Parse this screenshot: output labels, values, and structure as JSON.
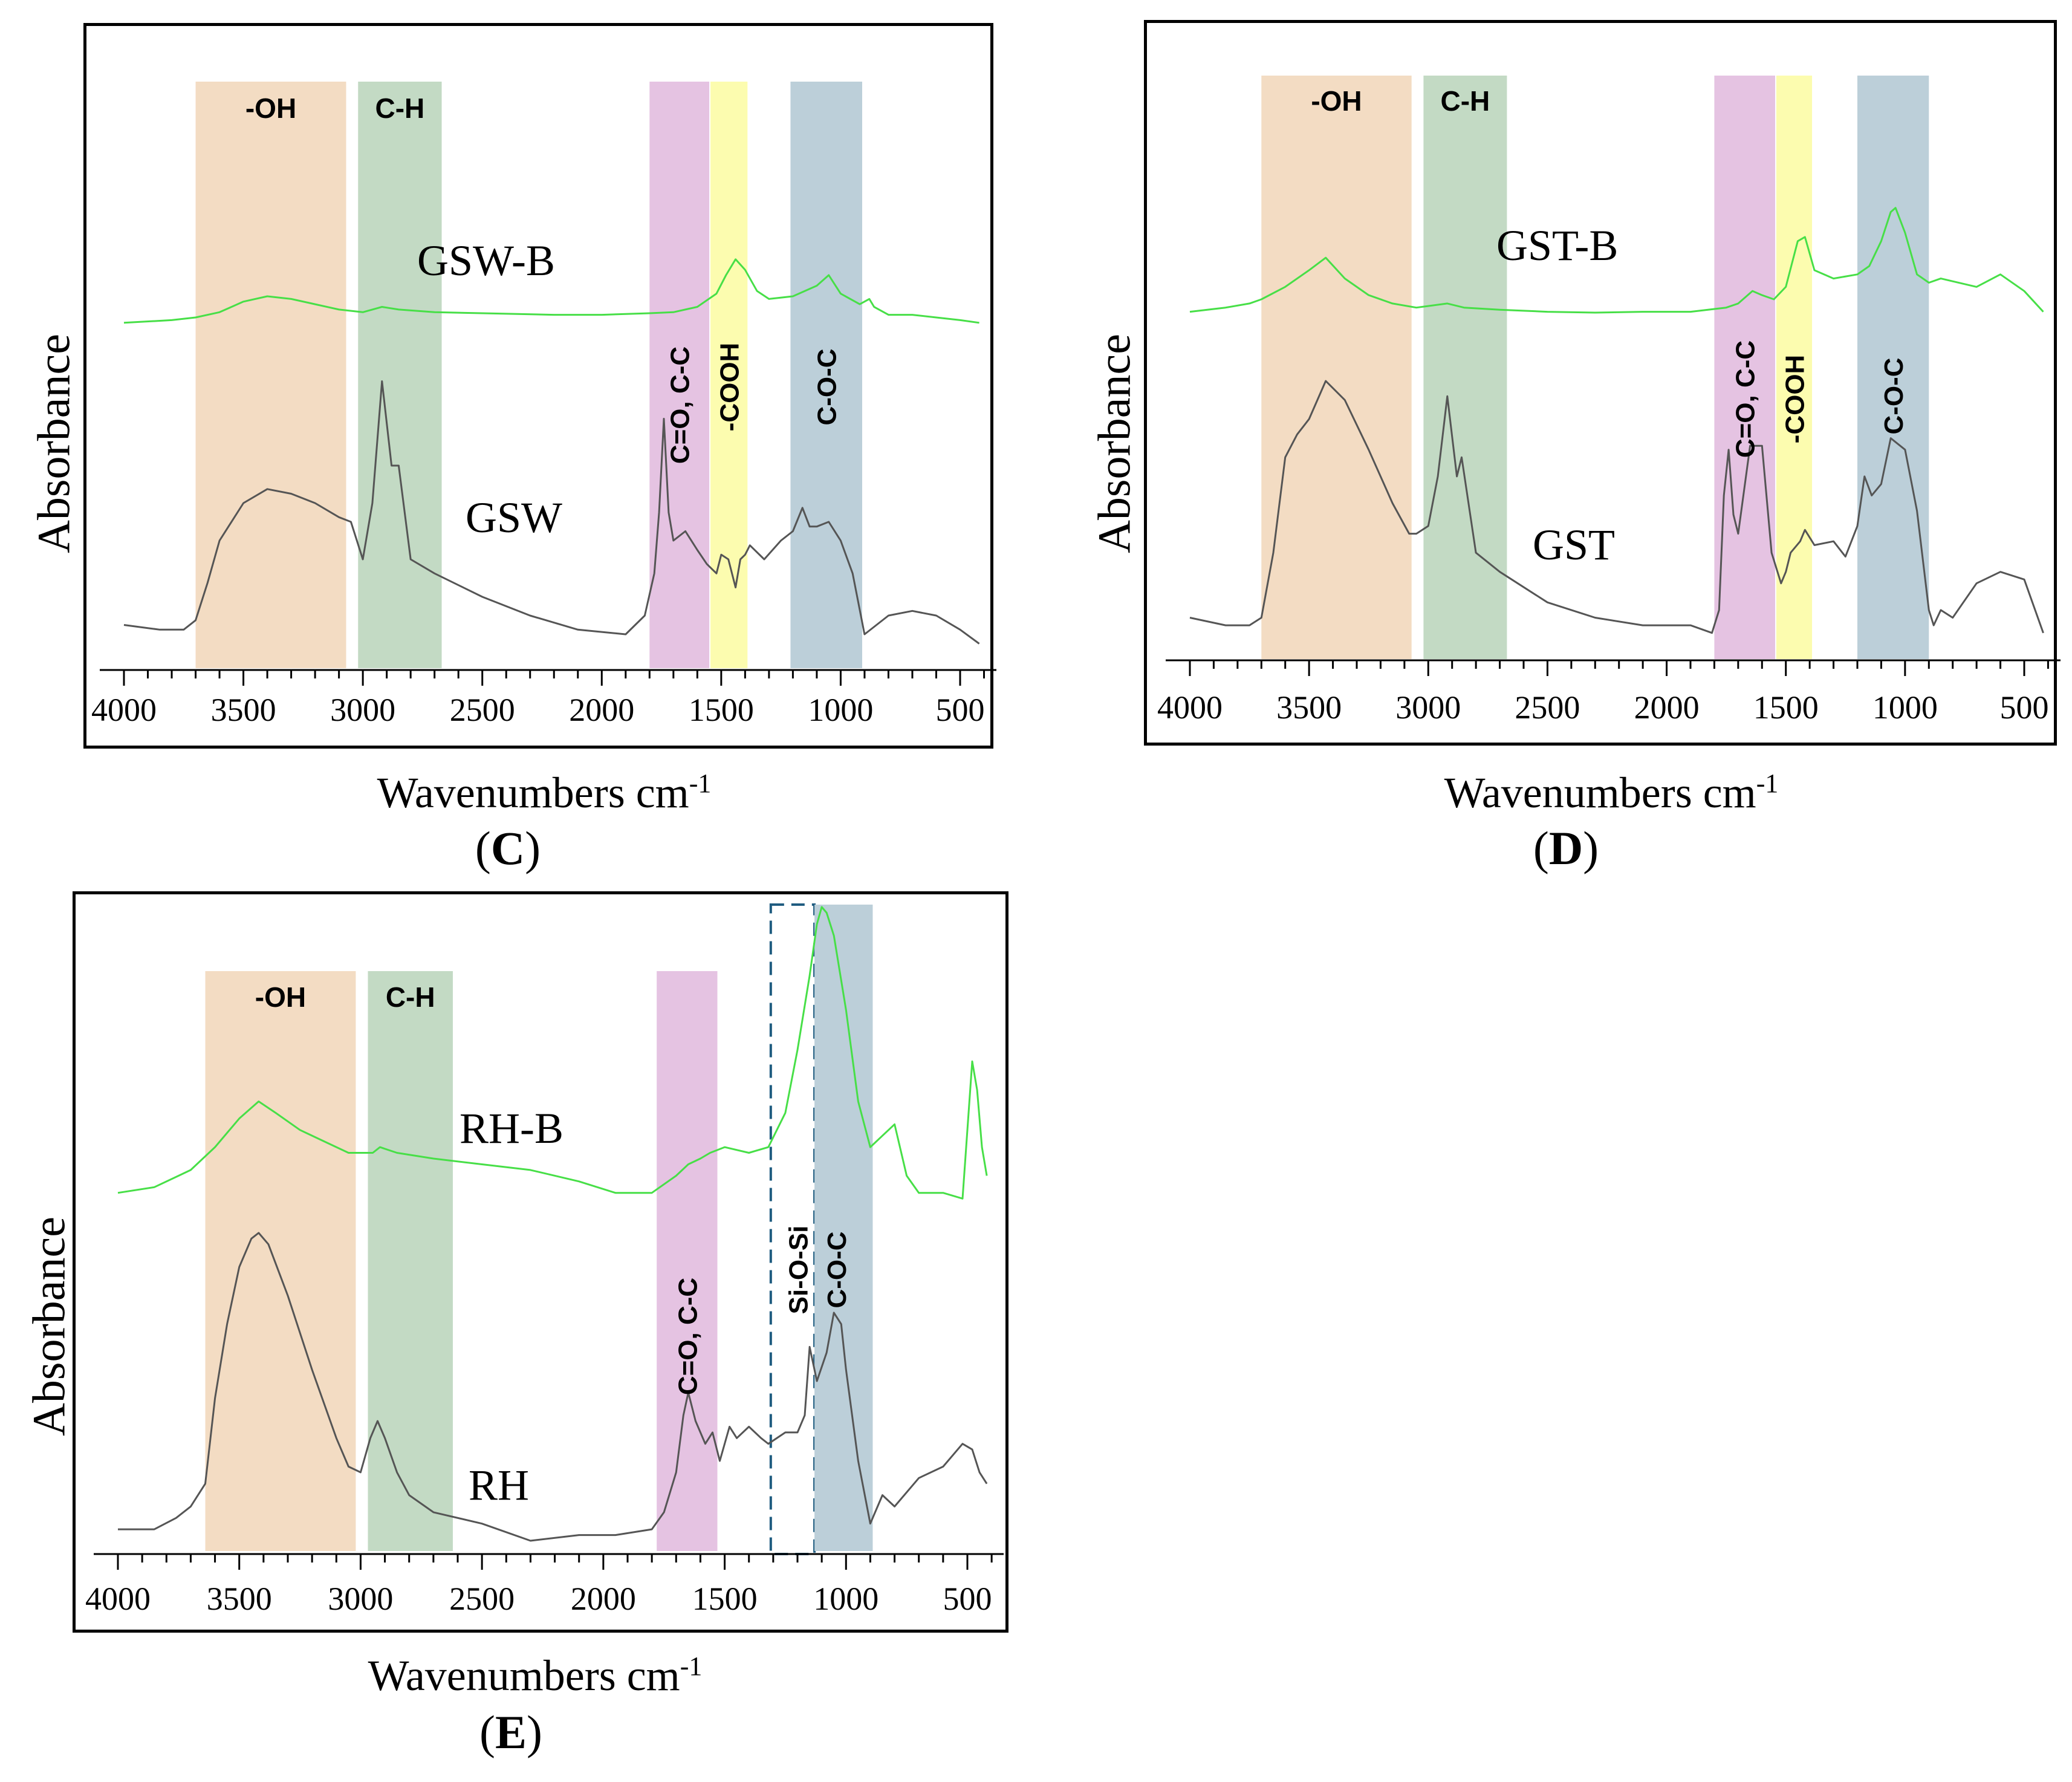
{
  "colors": {
    "oh": "#f3dcc3",
    "ch": "#c3dac4",
    "co": "#e5c3e2",
    "cooh": "#fcfcaf",
    "coc": "#bccfd9",
    "biochar_line": "#47df47",
    "raw_line": "#555555",
    "sios_box": "#1f5c80"
  },
  "chart_data": [
    {
      "type": "line",
      "panel": "C",
      "xlabel": "Wavenumbers cm",
      "xlabel_sup": "-1",
      "ylabel": "Absorbance",
      "panel_label": "C",
      "xlim": [
        4000,
        400
      ],
      "xticks": [
        4000,
        3500,
        3000,
        2500,
        2000,
        1500,
        1000,
        500
      ],
      "xtick_labels": [
        "4000",
        "3500",
        "3000",
        "2500",
        "2000",
        "1500",
        "1000",
        "500"
      ],
      "bands": [
        {
          "name": "-OH",
          "from": 3700,
          "to": 3070,
          "color": "oh",
          "label_style": "top"
        },
        {
          "name": "C-H",
          "from": 3020,
          "to": 2670,
          "color": "ch",
          "label_style": "top"
        },
        {
          "name": "C=O, C-C",
          "from": 1800,
          "to": 1550,
          "color": "co",
          "label_style": "vertical"
        },
        {
          "name": "-COOH",
          "from": 1545,
          "to": 1390,
          "color": "cooh",
          "label_style": "vertical"
        },
        {
          "name": "C-O-C",
          "from": 1210,
          "to": 910,
          "color": "coc",
          "label_style": "vertical"
        }
      ],
      "series": [
        {
          "name": "GSW-B",
          "color": "biochar_line",
          "x": [
            4000,
            3800,
            3700,
            3600,
            3500,
            3400,
            3300,
            3200,
            3100,
            3000,
            2920,
            2850,
            2700,
            2500,
            2200,
            2000,
            1800,
            1700,
            1650,
            1600,
            1520,
            1480,
            1440,
            1400,
            1350,
            1300,
            1200,
            1100,
            1050,
            1000,
            920,
            880,
            860,
            800,
            700,
            600,
            500,
            420
          ],
          "values": [
            0.53,
            0.535,
            0.54,
            0.55,
            0.57,
            0.58,
            0.575,
            0.565,
            0.555,
            0.55,
            0.56,
            0.555,
            0.55,
            0.548,
            0.545,
            0.545,
            0.548,
            0.55,
            0.555,
            0.56,
            0.585,
            0.62,
            0.65,
            0.63,
            0.59,
            0.575,
            0.58,
            0.6,
            0.62,
            0.585,
            0.565,
            0.575,
            0.56,
            0.545,
            0.545,
            0.54,
            0.535,
            0.53
          ]
        },
        {
          "name": "GSW",
          "color": "raw_line",
          "x": [
            4000,
            3850,
            3750,
            3700,
            3650,
            3600,
            3500,
            3400,
            3300,
            3200,
            3100,
            3050,
            3000,
            2960,
            2920,
            2880,
            2850,
            2800,
            2700,
            2500,
            2300,
            2100,
            1900,
            1820,
            1780,
            1760,
            1740,
            1720,
            1700,
            1650,
            1600,
            1560,
            1520,
            1500,
            1470,
            1440,
            1420,
            1400,
            1380,
            1320,
            1250,
            1200,
            1160,
            1130,
            1100,
            1050,
            1000,
            950,
            900,
            800,
            700,
            600,
            500,
            420
          ],
          "values": [
            0.06,
            0.05,
            0.05,
            0.07,
            0.15,
            0.24,
            0.32,
            0.35,
            0.34,
            0.32,
            0.29,
            0.28,
            0.2,
            0.32,
            0.58,
            0.4,
            0.4,
            0.2,
            0.17,
            0.12,
            0.08,
            0.05,
            0.04,
            0.08,
            0.17,
            0.3,
            0.5,
            0.3,
            0.24,
            0.26,
            0.22,
            0.19,
            0.17,
            0.21,
            0.2,
            0.14,
            0.2,
            0.21,
            0.23,
            0.2,
            0.24,
            0.26,
            0.31,
            0.27,
            0.27,
            0.28,
            0.24,
            0.17,
            0.04,
            0.08,
            0.09,
            0.08,
            0.05,
            0.02
          ]
        }
      ],
      "series_labels": [
        {
          "name": "GSW-B",
          "text": "GSW-B"
        },
        {
          "name": "GSW",
          "text": "GSW"
        }
      ]
    },
    {
      "type": "line",
      "panel": "D",
      "xlabel": "Wavenumbers cm",
      "xlabel_sup": "-1",
      "ylabel": "Absorbance",
      "panel_label": "D",
      "xlim": [
        4000,
        400
      ],
      "xticks": [
        4000,
        3500,
        3000,
        2500,
        2000,
        1500,
        1000,
        500
      ],
      "xtick_labels": [
        "4000",
        "3500",
        "3000",
        "2500",
        "2000",
        "1500",
        "1000",
        "500"
      ],
      "bands": [
        {
          "name": "-OH",
          "from": 3700,
          "to": 3070,
          "color": "oh",
          "label_style": "top"
        },
        {
          "name": "C-H",
          "from": 3020,
          "to": 2670,
          "color": "ch",
          "label_style": "top"
        },
        {
          "name": "C=O, C-C",
          "from": 1800,
          "to": 1545,
          "color": "co",
          "label_style": "vertical"
        },
        {
          "name": "-COOH",
          "from": 1540,
          "to": 1390,
          "color": "cooh",
          "label_style": "vertical"
        },
        {
          "name": "C-O-C",
          "from": 1200,
          "to": 900,
          "color": "coc",
          "label_style": "vertical"
        }
      ],
      "series": [
        {
          "name": "GST-B",
          "color": "biochar_line",
          "x": [
            4000,
            3850,
            3750,
            3700,
            3600,
            3500,
            3430,
            3350,
            3250,
            3150,
            3050,
            2920,
            2850,
            2700,
            2500,
            2300,
            2100,
            1900,
            1750,
            1700,
            1640,
            1600,
            1550,
            1500,
            1450,
            1420,
            1380,
            1300,
            1200,
            1150,
            1100,
            1060,
            1040,
            1000,
            950,
            900,
            850,
            700,
            600,
            500,
            420
          ],
          "values": [
            0.55,
            0.56,
            0.57,
            0.58,
            0.61,
            0.65,
            0.68,
            0.63,
            0.59,
            0.57,
            0.56,
            0.57,
            0.56,
            0.555,
            0.55,
            0.548,
            0.55,
            0.55,
            0.56,
            0.57,
            0.6,
            0.59,
            0.58,
            0.61,
            0.72,
            0.73,
            0.65,
            0.63,
            0.64,
            0.66,
            0.72,
            0.79,
            0.8,
            0.74,
            0.64,
            0.62,
            0.63,
            0.61,
            0.64,
            0.6,
            0.55
          ]
        },
        {
          "name": "GST",
          "color": "raw_line",
          "x": [
            4000,
            3850,
            3750,
            3700,
            3650,
            3600,
            3550,
            3500,
            3430,
            3350,
            3250,
            3150,
            3080,
            3050,
            3000,
            2960,
            2920,
            2880,
            2860,
            2800,
            2700,
            2500,
            2300,
            2100,
            1900,
            1810,
            1780,
            1760,
            1740,
            1720,
            1700,
            1650,
            1600,
            1560,
            1520,
            1500,
            1480,
            1440,
            1420,
            1380,
            1300,
            1250,
            1200,
            1170,
            1140,
            1100,
            1060,
            1000,
            950,
            900,
            880,
            850,
            800,
            700,
            600,
            500,
            420
          ],
          "values": [
            0.08,
            0.06,
            0.06,
            0.08,
            0.25,
            0.5,
            0.56,
            0.6,
            0.7,
            0.65,
            0.52,
            0.38,
            0.3,
            0.3,
            0.32,
            0.45,
            0.66,
            0.45,
            0.5,
            0.25,
            0.2,
            0.12,
            0.08,
            0.06,
            0.06,
            0.04,
            0.1,
            0.4,
            0.52,
            0.35,
            0.3,
            0.53,
            0.53,
            0.25,
            0.17,
            0.2,
            0.25,
            0.28,
            0.31,
            0.27,
            0.28,
            0.24,
            0.32,
            0.45,
            0.4,
            0.43,
            0.55,
            0.52,
            0.36,
            0.1,
            0.06,
            0.1,
            0.08,
            0.17,
            0.2,
            0.18,
            0.04
          ]
        }
      ],
      "series_labels": [
        {
          "name": "GST-B",
          "text": "GST-B"
        },
        {
          "name": "GST",
          "text": "GST"
        }
      ]
    },
    {
      "type": "line",
      "panel": "E",
      "xlabel": "Wavenumbers cm",
      "xlabel_sup": "-1",
      "ylabel": "Absorbance",
      "panel_label": "E",
      "xlim": [
        4000,
        400
      ],
      "xticks": [
        4000,
        3500,
        3000,
        2500,
        2000,
        1500,
        1000,
        500
      ],
      "xtick_labels": [
        "4000",
        "3500",
        "3000",
        "2500",
        "2000",
        "1500",
        "1000",
        "500"
      ],
      "bands": [
        {
          "name": "-OH",
          "from": 3640,
          "to": 3020,
          "color": "oh",
          "label_style": "top"
        },
        {
          "name": "C-H",
          "from": 2970,
          "to": 2620,
          "color": "ch",
          "label_style": "top"
        },
        {
          "name": "C=O, C-C",
          "from": 1780,
          "to": 1530,
          "color": "co",
          "label_style": "vertical"
        },
        {
          "name": "Si-O-Si",
          "from": 1310,
          "to": 1130,
          "color": "none",
          "label_style": "dashed-box"
        },
        {
          "name": "C-O-C",
          "from": 1130,
          "to": 890,
          "color": "coc",
          "label_style": "vertical"
        }
      ],
      "series": [
        {
          "name": "RH-B",
          "color": "biochar_line",
          "x": [
            4000,
            3850,
            3750,
            3700,
            3600,
            3500,
            3420,
            3350,
            3250,
            3150,
            3050,
            2950,
            2920,
            2850,
            2700,
            2500,
            2300,
            2100,
            1950,
            1800,
            1700,
            1650,
            1600,
            1560,
            1500,
            1400,
            1320,
            1250,
            1200,
            1150,
            1120,
            1100,
            1080,
            1050,
            1000,
            950,
            900,
            850,
            800,
            750,
            700,
            600,
            520,
            480,
            460,
            440,
            420
          ],
          "values": [
            0.5,
            0.51,
            0.53,
            0.54,
            0.58,
            0.63,
            0.66,
            0.64,
            0.61,
            0.59,
            0.57,
            0.57,
            0.58,
            0.57,
            0.56,
            0.55,
            0.54,
            0.52,
            0.5,
            0.5,
            0.53,
            0.55,
            0.56,
            0.57,
            0.58,
            0.57,
            0.58,
            0.64,
            0.75,
            0.88,
            0.97,
            1.0,
            0.99,
            0.95,
            0.82,
            0.66,
            0.58,
            0.6,
            0.62,
            0.53,
            0.5,
            0.5,
            0.49,
            0.73,
            0.68,
            0.58,
            0.53
          ]
        },
        {
          "name": "RH",
          "color": "raw_line",
          "x": [
            4000,
            3850,
            3760,
            3700,
            3640,
            3600,
            3550,
            3500,
            3450,
            3420,
            3380,
            3300,
            3200,
            3100,
            3050,
            3000,
            2960,
            2930,
            2900,
            2850,
            2800,
            2700,
            2500,
            2300,
            2100,
            1950,
            1800,
            1750,
            1700,
            1670,
            1650,
            1620,
            1580,
            1550,
            1520,
            1480,
            1450,
            1400,
            1350,
            1320,
            1250,
            1200,
            1170,
            1150,
            1120,
            1080,
            1050,
            1020,
            1000,
            950,
            900,
            850,
            800,
            700,
            600,
            520,
            480,
            450,
            420
          ],
          "values": [
            0.02,
            0.02,
            0.04,
            0.06,
            0.1,
            0.25,
            0.38,
            0.48,
            0.53,
            0.54,
            0.52,
            0.43,
            0.3,
            0.18,
            0.13,
            0.12,
            0.18,
            0.21,
            0.18,
            0.12,
            0.08,
            0.05,
            0.03,
            0.0,
            0.01,
            0.01,
            0.02,
            0.05,
            0.12,
            0.22,
            0.26,
            0.21,
            0.17,
            0.19,
            0.14,
            0.2,
            0.18,
            0.2,
            0.18,
            0.17,
            0.19,
            0.19,
            0.22,
            0.34,
            0.28,
            0.33,
            0.4,
            0.38,
            0.3,
            0.14,
            0.03,
            0.08,
            0.06,
            0.11,
            0.13,
            0.17,
            0.16,
            0.12,
            0.1
          ]
        }
      ],
      "series_labels": [
        {
          "name": "RH-B",
          "text": "RH-B"
        },
        {
          "name": "RH",
          "text": "RH"
        }
      ]
    }
  ]
}
